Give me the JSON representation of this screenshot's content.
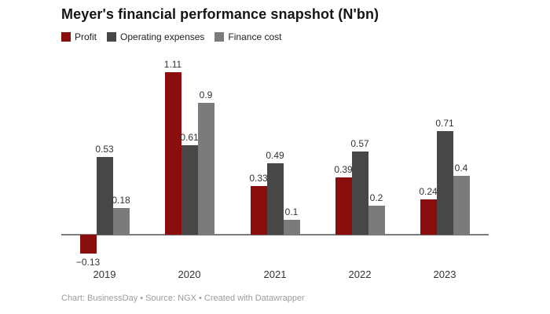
{
  "title": "Meyer's financial performance snapshot (N'bn)",
  "legend": [
    {
      "label": "Profit",
      "color": "#8b0e0e"
    },
    {
      "label": "Operating expenses",
      "color": "#474747"
    },
    {
      "label": "Finance cost",
      "color": "#7b7b7b"
    }
  ],
  "chart_data": {
    "type": "bar",
    "title": "Meyer's financial performance snapshot (N'bn)",
    "categories": [
      "2019",
      "2020",
      "2021",
      "2022",
      "2023"
    ],
    "series": [
      {
        "name": "Profit",
        "color": "#8b0e0e",
        "values": [
          -0.13,
          1.11,
          0.33,
          0.39,
          0.24
        ],
        "labels": [
          "−0.13",
          "1.11",
          "0.33",
          "0.39",
          "0.24"
        ]
      },
      {
        "name": "Operating expenses",
        "color": "#474747",
        "values": [
          0.53,
          0.61,
          0.49,
          0.57,
          0.71
        ],
        "labels": [
          "0.53",
          "0.61",
          "0.49",
          "0.57",
          "0.71"
        ]
      },
      {
        "name": "Finance cost",
        "color": "#7b7b7b",
        "values": [
          0.18,
          0.9,
          0.1,
          0.2,
          0.4
        ],
        "labels": [
          "0.18",
          "0.9",
          "0.1",
          "0.2",
          "0.4"
        ]
      }
    ],
    "xlabel": "",
    "ylabel": "",
    "ylim": [
      -0.25,
      1.2
    ],
    "baseline": 0,
    "grid": false,
    "legend_position": "top-left",
    "value_labels": true,
    "axis_color": "#7d7d7d"
  },
  "footer": {
    "text": "Chart: BusinessDay • Source: NGX • Created with Datawrapper"
  }
}
